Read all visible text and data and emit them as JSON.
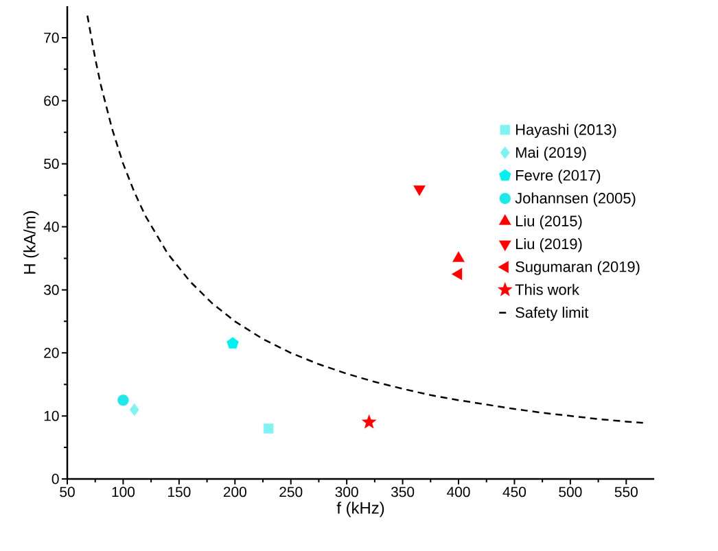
{
  "chart_data": {
    "type": "scatter",
    "xlabel": "f (kHz)",
    "ylabel": "H (kA/m)",
    "xlim": [
      50,
      575
    ],
    "ylim": [
      0,
      75
    ],
    "xticks": [
      50,
      100,
      150,
      200,
      250,
      300,
      350,
      400,
      450,
      500,
      550
    ],
    "yticks": [
      0,
      10,
      20,
      30,
      40,
      50,
      60,
      70
    ],
    "legend": "right",
    "grid": false,
    "series": [
      {
        "name": "Hayashi (2013)",
        "color": "#80f2f2",
        "marker": "square",
        "x": [
          230
        ],
        "values": [
          8
        ]
      },
      {
        "name": "Mai (2019)",
        "color": "#80f2f2",
        "marker": "diamond",
        "x": [
          110
        ],
        "values": [
          11
        ]
      },
      {
        "name": "Fevre (2017)",
        "color": "#00f0f0",
        "x": [
          198
        ],
        "values": [
          21.5
        ]
      },
      {
        "name": "Johannsen (2005)",
        "color": "#20e8e8",
        "marker": "circle",
        "x": [
          100
        ],
        "values": [
          12.5
        ]
      },
      {
        "name": "Liu (2015)",
        "color": "#ff0000",
        "marker": "triangle",
        "x": [
          400
        ],
        "values": [
          35
        ]
      },
      {
        "name": "Liu (2019)",
        "color": "#ff0000",
        "marker": "triangle-down",
        "x": [
          365
        ],
        "values": [
          46
        ]
      },
      {
        "name": "Sugumaran (2019)",
        "color": "#ff0000",
        "marker": "triangle-left",
        "x": [
          400
        ],
        "values": [
          32.5
        ]
      },
      {
        "name": "This work",
        "color": "#ff0000",
        "marker": "star",
        "x": [
          320
        ],
        "values": [
          9
        ]
      },
      {
        "name": "Safety limit",
        "type": "line",
        "color": "#000000",
        "marker": "none",
        "line_style": "dashed",
        "x": [
          68,
          75,
          80,
          90,
          100,
          110,
          120,
          140,
          160,
          180,
          200,
          225,
          250,
          275,
          300,
          325,
          350,
          375,
          400,
          425,
          450,
          475,
          500,
          525,
          550,
          565
        ],
        "values": [
          73.5,
          66.7,
          62.5,
          55.6,
          50,
          45.5,
          41.7,
          35.7,
          31.3,
          27.8,
          25,
          22.2,
          20,
          18.2,
          16.7,
          15.4,
          14.3,
          13.3,
          12.5,
          11.8,
          11.1,
          10.5,
          10,
          9.5,
          9.1,
          8.9
        ]
      }
    ]
  }
}
